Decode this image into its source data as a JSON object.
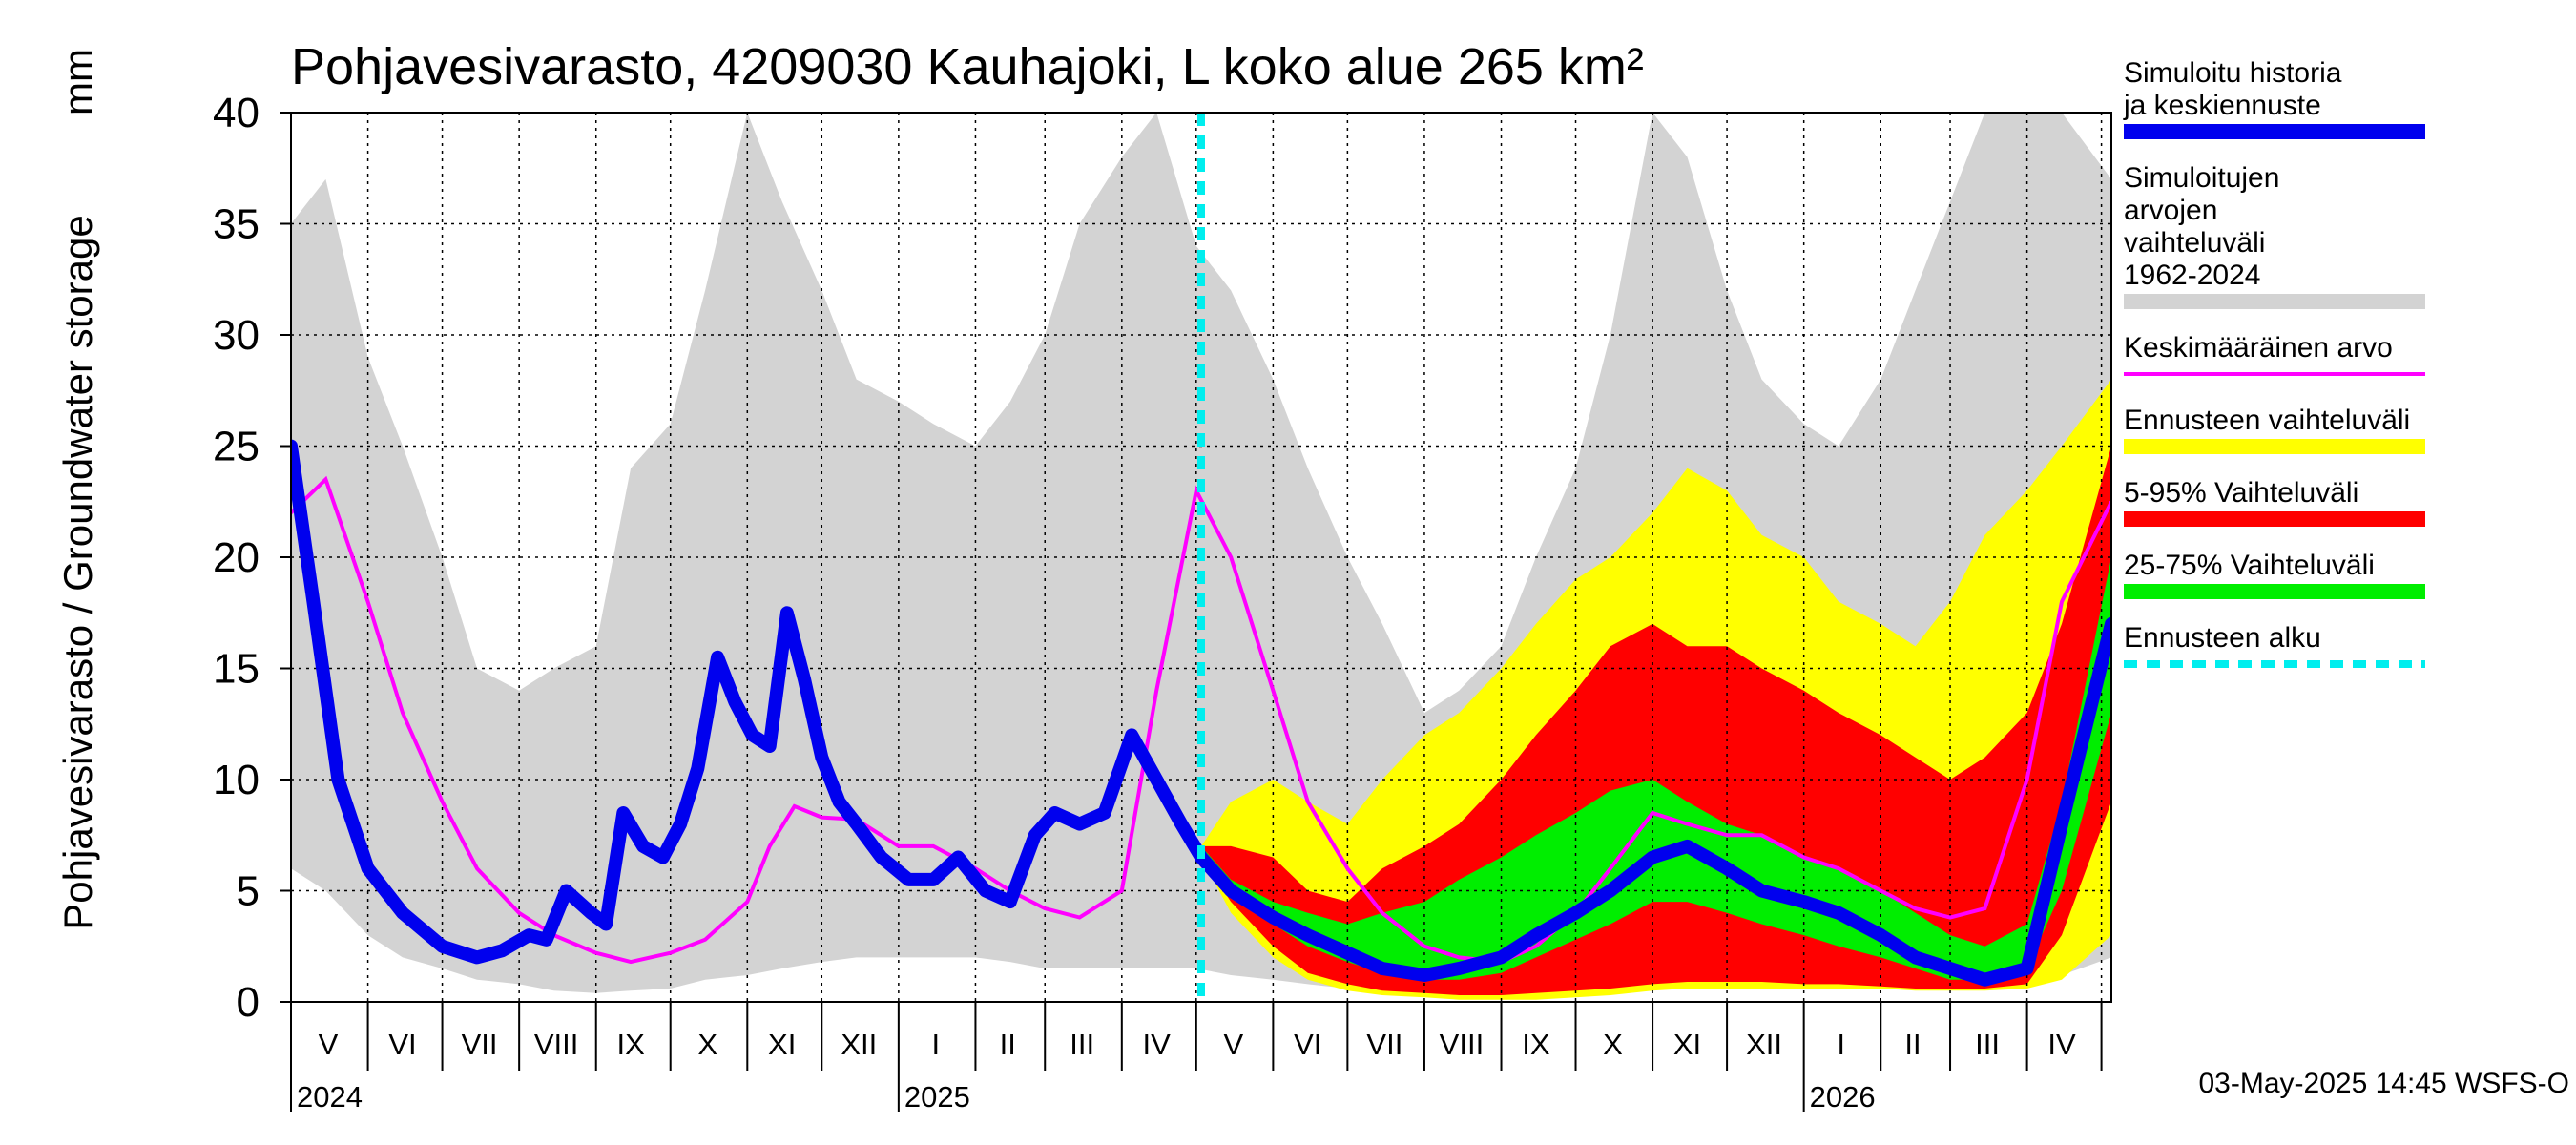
{
  "chart_data": {
    "type": "area",
    "title": "Pohjavesivarasto, 4209030 Kauhajoki, L koko alue 265 km²",
    "ylabel": "Pohjavesivarasto / Groundwater storage",
    "yunit": "mm",
    "ylim": [
      0,
      40
    ],
    "yticks": [
      0,
      5,
      10,
      15,
      20,
      25,
      30,
      35,
      40
    ],
    "xlim": [
      "2024-05-01",
      "2026-05-05"
    ],
    "grid": true,
    "forecast_start": "2025-05-03",
    "month_labels": [
      {
        "label": "V",
        "date": "2024-05-16"
      },
      {
        "label": "VI",
        "date": "2024-06-15"
      },
      {
        "label": "VII",
        "date": "2024-07-16"
      },
      {
        "label": "VIII",
        "date": "2024-08-16"
      },
      {
        "label": "IX",
        "date": "2024-09-15"
      },
      {
        "label": "X",
        "date": "2024-10-16"
      },
      {
        "label": "XI",
        "date": "2024-11-15"
      },
      {
        "label": "XII",
        "date": "2024-12-16"
      },
      {
        "label": "I",
        "date": "2025-01-16"
      },
      {
        "label": "II",
        "date": "2025-02-14"
      },
      {
        "label": "III",
        "date": "2025-03-16"
      },
      {
        "label": "IV",
        "date": "2025-04-15"
      },
      {
        "label": "V",
        "date": "2025-05-16"
      },
      {
        "label": "VI",
        "date": "2025-06-15"
      },
      {
        "label": "VII",
        "date": "2025-07-16"
      },
      {
        "label": "VIII",
        "date": "2025-08-16"
      },
      {
        "label": "IX",
        "date": "2025-09-15"
      },
      {
        "label": "X",
        "date": "2025-10-16"
      },
      {
        "label": "XI",
        "date": "2025-11-15"
      },
      {
        "label": "XII",
        "date": "2025-12-16"
      },
      {
        "label": "I",
        "date": "2026-01-16"
      },
      {
        "label": "II",
        "date": "2026-02-14"
      },
      {
        "label": "III",
        "date": "2026-03-16"
      },
      {
        "label": "IV",
        "date": "2026-04-15"
      }
    ],
    "year_labels": [
      {
        "label": "2024",
        "date": "2024-05-01"
      },
      {
        "label": "2025",
        "date": "2025-01-01"
      },
      {
        "label": "2026",
        "date": "2026-01-01"
      }
    ],
    "legend": [
      {
        "label": "Simuloitu historia ja keskiennuste",
        "color": "#0000ee",
        "kind": "line-thick"
      },
      {
        "label": "Simuloitujen arvojen vaihteluväli 1962-2024",
        "color": "#d3d3d3",
        "kind": "band"
      },
      {
        "label": "Keskimääräinen arvo",
        "color": "#ff00ff",
        "kind": "line-thin"
      },
      {
        "label": "Ennusteen vaihteluväli",
        "color": "#ffff00",
        "kind": "band"
      },
      {
        "label": "5-95% Vaihteluväli",
        "color": "#ff0000",
        "kind": "band"
      },
      {
        "label": "25-75% Vaihteluväli",
        "color": "#00ee00",
        "kind": "band"
      },
      {
        "label": "Ennusteen alku",
        "color": "#00eeee",
        "kind": "dashed"
      }
    ],
    "timestamp": "03-May-2025 14:45 WSFS-O",
    "series": {
      "hist_range": {
        "x": [
          "2024-05-01",
          "2024-05-15",
          "2024-06-01",
          "2024-06-15",
          "2024-07-01",
          "2024-07-15",
          "2024-08-01",
          "2024-08-15",
          "2024-09-01",
          "2024-09-15",
          "2024-10-01",
          "2024-10-15",
          "2024-11-01",
          "2024-11-15",
          "2024-12-01",
          "2024-12-15",
          "2025-01-01",
          "2025-01-15",
          "2025-02-01",
          "2025-02-15",
          "2025-03-01",
          "2025-03-15",
          "2025-04-01",
          "2025-04-15",
          "2025-05-01",
          "2025-05-15",
          "2025-06-01",
          "2025-06-15",
          "2025-07-01",
          "2025-07-15",
          "2025-08-01",
          "2025-08-15",
          "2025-09-01",
          "2025-09-15",
          "2025-10-01",
          "2025-10-15",
          "2025-11-01",
          "2025-11-15",
          "2025-12-01",
          "2025-12-15",
          "2026-01-01",
          "2026-01-15",
          "2026-02-01",
          "2026-02-15",
          "2026-03-01",
          "2026-03-15",
          "2026-04-01",
          "2026-04-15",
          "2026-05-05"
        ],
        "low": [
          6,
          5,
          3,
          2,
          1.5,
          1,
          0.8,
          0.5,
          0.4,
          0.5,
          0.6,
          1,
          1.2,
          1.5,
          1.8,
          2,
          2,
          2,
          2,
          1.8,
          1.5,
          1.5,
          1.5,
          1.5,
          1.5,
          1.2,
          1,
          0.8,
          0.6,
          0.5,
          0.4,
          0.4,
          0.4,
          0.5,
          0.6,
          0.8,
          1,
          1.2,
          1.5,
          1.5,
          1.5,
          1.3,
          1.2,
          1,
          1,
          1,
          1,
          1.2,
          2
        ],
        "high": [
          35,
          37,
          29,
          25,
          20,
          15,
          14,
          15,
          16,
          24,
          26,
          32,
          40,
          36,
          32,
          28,
          27,
          26,
          25,
          27,
          30,
          35,
          38,
          40,
          34,
          32,
          28,
          24,
          20,
          17,
          13,
          14,
          16,
          20,
          24,
          30,
          40,
          38,
          32,
          28,
          26,
          25,
          28,
          32,
          36,
          40,
          40,
          40,
          37
        ]
      },
      "forecast_full": {
        "x": [
          "2025-05-03",
          "2025-05-15",
          "2025-06-01",
          "2025-06-15",
          "2025-07-01",
          "2025-07-15",
          "2025-08-01",
          "2025-08-15",
          "2025-09-01",
          "2025-09-15",
          "2025-10-01",
          "2025-10-15",
          "2025-11-01",
          "2025-11-15",
          "2025-12-01",
          "2025-12-15",
          "2026-01-01",
          "2026-01-15",
          "2026-02-01",
          "2026-02-15",
          "2026-03-01",
          "2026-03-15",
          "2026-04-01",
          "2026-04-15",
          "2026-05-05"
        ],
        "low": [
          6.5,
          4,
          2,
          1,
          0.5,
          0.3,
          0.2,
          0.1,
          0.1,
          0.1,
          0.2,
          0.3,
          0.5,
          0.6,
          0.6,
          0.6,
          0.6,
          0.6,
          0.6,
          0.5,
          0.5,
          0.5,
          0.6,
          1,
          3
        ],
        "high": [
          7,
          9,
          10,
          9,
          8,
          10,
          12,
          13,
          15,
          17,
          19,
          20,
          22,
          24,
          23,
          21,
          20,
          18,
          17,
          16,
          18,
          21,
          23,
          25,
          28
        ]
      },
      "p5_95": {
        "x": [
          "2025-05-03",
          "2025-05-15",
          "2025-06-01",
          "2025-06-15",
          "2025-07-01",
          "2025-07-15",
          "2025-08-01",
          "2025-08-15",
          "2025-09-01",
          "2025-09-15",
          "2025-10-01",
          "2025-10-15",
          "2025-11-01",
          "2025-11-15",
          "2025-12-01",
          "2025-12-15",
          "2026-01-01",
          "2026-01-15",
          "2026-02-01",
          "2026-02-15",
          "2026-03-01",
          "2026-03-15",
          "2026-04-01",
          "2026-04-15",
          "2026-05-05"
        ],
        "low": [
          6.5,
          4.5,
          2.5,
          1.3,
          0.8,
          0.5,
          0.4,
          0.3,
          0.3,
          0.4,
          0.5,
          0.6,
          0.8,
          0.9,
          0.9,
          0.9,
          0.8,
          0.8,
          0.7,
          0.6,
          0.6,
          0.6,
          0.8,
          3,
          9
        ],
        "high": [
          7,
          7,
          6.5,
          5,
          4.5,
          6,
          7,
          8,
          10,
          12,
          14,
          16,
          17,
          16,
          16,
          15,
          14,
          13,
          12,
          11,
          10,
          11,
          13,
          17,
          25
        ]
      },
      "p25_75": {
        "x": [
          "2025-05-03",
          "2025-05-15",
          "2025-06-01",
          "2025-06-15",
          "2025-07-01",
          "2025-07-15",
          "2025-08-01",
          "2025-08-15",
          "2025-09-01",
          "2025-09-15",
          "2025-10-01",
          "2025-10-15",
          "2025-11-01",
          "2025-11-15",
          "2025-12-01",
          "2025-12-15",
          "2026-01-01",
          "2026-01-15",
          "2026-02-01",
          "2026-02-15",
          "2026-03-01",
          "2026-03-15",
          "2026-04-01",
          "2026-04-15",
          "2026-05-05"
        ],
        "low": [
          6.5,
          5,
          3.5,
          2.5,
          1.8,
          1.3,
          1,
          1,
          1.3,
          2,
          2.8,
          3.5,
          4.5,
          4.5,
          4,
          3.5,
          3,
          2.5,
          2,
          1.5,
          1,
          1,
          1.5,
          5,
          13
        ],
        "high": [
          7,
          5.5,
          4.5,
          4,
          3.5,
          4,
          4.5,
          5.5,
          6.5,
          7.5,
          8.5,
          9.5,
          10,
          9,
          8,
          7.5,
          6.5,
          6,
          5,
          4,
          3,
          2.5,
          3.5,
          9,
          20
        ]
      },
      "mean": {
        "x": [
          "2024-05-01",
          "2024-05-15",
          "2024-06-01",
          "2024-06-15",
          "2024-07-01",
          "2024-07-15",
          "2024-08-01",
          "2024-08-15",
          "2024-09-01",
          "2024-09-15",
          "2024-10-01",
          "2024-10-15",
          "2024-11-01",
          "2024-11-10",
          "2024-11-20",
          "2024-12-01",
          "2024-12-15",
          "2025-01-01",
          "2025-01-15",
          "2025-02-01",
          "2025-02-15",
          "2025-03-01",
          "2025-03-15",
          "2025-04-01",
          "2025-04-15",
          "2025-05-01",
          "2025-05-15",
          "2025-06-01",
          "2025-06-15",
          "2025-07-01",
          "2025-07-15",
          "2025-08-01",
          "2025-08-15",
          "2025-09-01",
          "2025-09-15",
          "2025-10-01",
          "2025-10-15",
          "2025-11-01",
          "2025-11-15",
          "2025-12-01",
          "2025-12-15",
          "2026-01-01",
          "2026-01-15",
          "2026-02-01",
          "2026-02-15",
          "2026-03-01",
          "2026-03-15",
          "2026-04-01",
          "2026-04-15",
          "2026-05-05"
        ],
        "y": [
          22,
          23.5,
          18,
          13,
          9,
          6,
          4,
          3,
          2.2,
          1.8,
          2.2,
          2.8,
          4.5,
          7,
          8.8,
          8.3,
          8.2,
          7,
          7,
          6,
          5,
          4.2,
          3.8,
          5,
          14,
          23,
          20,
          14,
          9,
          6,
          4,
          2.5,
          2,
          1.8,
          2.5,
          4,
          6,
          8.5,
          8,
          7.5,
          7.5,
          6.5,
          6,
          5,
          4.2,
          3.8,
          4.2,
          10,
          18,
          22.5
        ]
      },
      "history": {
        "x": [
          "2024-05-01",
          "2024-05-10",
          "2024-05-20",
          "2024-06-01",
          "2024-06-15",
          "2024-07-01",
          "2024-07-15",
          "2024-07-25",
          "2024-08-05",
          "2024-08-12",
          "2024-08-20",
          "2024-08-30",
          "2024-09-05",
          "2024-09-12",
          "2024-09-20",
          "2024-09-28",
          "2024-10-05",
          "2024-10-12",
          "2024-10-20",
          "2024-10-27",
          "2024-11-03",
          "2024-11-10",
          "2024-11-17",
          "2024-11-24",
          "2024-12-01",
          "2024-12-08",
          "2024-12-15",
          "2024-12-25",
          "2025-01-05",
          "2025-01-15",
          "2025-01-25",
          "2025-02-05",
          "2025-02-15",
          "2025-02-25",
          "2025-03-05",
          "2025-03-15",
          "2025-03-25",
          "2025-04-05",
          "2025-04-15",
          "2025-04-25",
          "2025-05-03"
        ],
        "y": [
          25,
          18,
          10,
          6,
          4,
          2.5,
          2,
          2.3,
          3,
          2.8,
          5,
          4,
          3.5,
          8.5,
          7,
          6.5,
          8,
          10.5,
          15.5,
          13.5,
          12,
          11.5,
          17.5,
          14.5,
          11,
          9,
          8,
          6.5,
          5.5,
          5.5,
          6.5,
          5,
          4.5,
          7.5,
          8.5,
          8,
          8.5,
          12,
          10,
          8,
          6.5
        ]
      },
      "forecast_mean": {
        "x": [
          "2025-05-03",
          "2025-05-15",
          "2025-06-01",
          "2025-06-15",
          "2025-07-01",
          "2025-07-15",
          "2025-08-01",
          "2025-08-15",
          "2025-09-01",
          "2025-09-15",
          "2025-10-01",
          "2025-10-15",
          "2025-11-01",
          "2025-11-15",
          "2025-12-01",
          "2025-12-15",
          "2026-01-01",
          "2026-01-15",
          "2026-02-01",
          "2026-02-15",
          "2026-03-01",
          "2026-03-15",
          "2026-04-01",
          "2026-04-15",
          "2026-05-05"
        ],
        "y": [
          6.5,
          5,
          3.8,
          3,
          2.2,
          1.5,
          1.2,
          1.5,
          2,
          3,
          4,
          5,
          6.5,
          7,
          6,
          5,
          4.5,
          4,
          3,
          2,
          1.5,
          1,
          1.5,
          8,
          17
        ]
      }
    }
  }
}
